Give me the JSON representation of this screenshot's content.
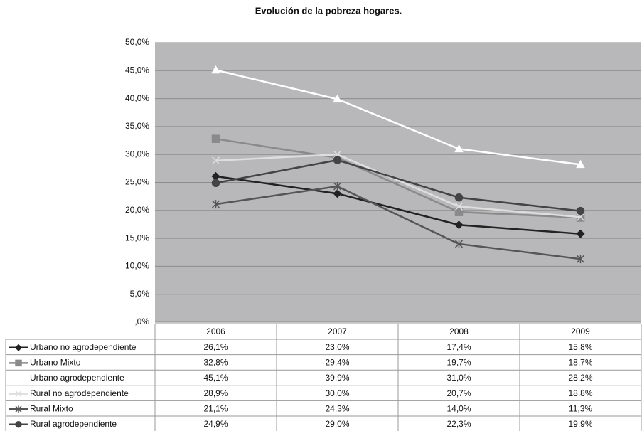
{
  "chart_data": {
    "type": "line",
    "title": "Evolución de la pobreza hogares.",
    "categories": [
      "2006",
      "2007",
      "2008",
      "2009"
    ],
    "ylim": [
      0,
      50
    ],
    "yticks": [
      {
        "value": 0,
        "label": ",0%"
      },
      {
        "value": 5,
        "label": "5,0%"
      },
      {
        "value": 10,
        "label": "10,0%"
      },
      {
        "value": 15,
        "label": "15,0%"
      },
      {
        "value": 20,
        "label": "20,0%"
      },
      {
        "value": 25,
        "label": "25,0%"
      },
      {
        "value": 30,
        "label": "30,0%"
      },
      {
        "value": 35,
        "label": "35,0%"
      },
      {
        "value": 40,
        "label": "40,0%"
      },
      {
        "value": 45,
        "label": "45,0%"
      },
      {
        "value": 50,
        "label": "50,0%"
      }
    ],
    "grid": true,
    "series": [
      {
        "name": "Urbano no agrodependiente",
        "color": "#222222",
        "marker": "diamond",
        "values": [
          26.1,
          23.0,
          17.4,
          15.8
        ],
        "value_labels": [
          "26,1%",
          "23,0%",
          "17,4%",
          "15,8%"
        ]
      },
      {
        "name": "Urbano Mixto",
        "color": "#8a8a8a",
        "marker": "square",
        "values": [
          32.8,
          29.4,
          19.7,
          18.7
        ],
        "value_labels": [
          "32,8%",
          "29,4%",
          "19,7%",
          "18,7%"
        ]
      },
      {
        "name": "Urbano agrodependiente",
        "color": "#ffffff",
        "marker": "triangle",
        "values": [
          45.1,
          39.9,
          31.0,
          28.2
        ],
        "value_labels": [
          "45,1%",
          "39,9%",
          "31,0%",
          "28,2%"
        ]
      },
      {
        "name": "Rural no agrodependiente",
        "color": "#dedede",
        "marker": "x",
        "values": [
          28.9,
          30.0,
          20.7,
          18.8
        ],
        "value_labels": [
          "28,9%",
          "30,0%",
          "20,7%",
          "18,8%"
        ]
      },
      {
        "name": "Rural Mixto",
        "color": "#555555",
        "marker": "star",
        "values": [
          21.1,
          24.3,
          14.0,
          11.3
        ],
        "value_labels": [
          "21,1%",
          "24,3%",
          "14,0%",
          "11,3%"
        ]
      },
      {
        "name": "Rural agrodependiente",
        "color": "#444444",
        "marker": "circle",
        "values": [
          24.9,
          29.0,
          22.3,
          19.9
        ],
        "value_labels": [
          "24,9%",
          "29,0%",
          "22,3%",
          "19,9%"
        ]
      }
    ]
  }
}
